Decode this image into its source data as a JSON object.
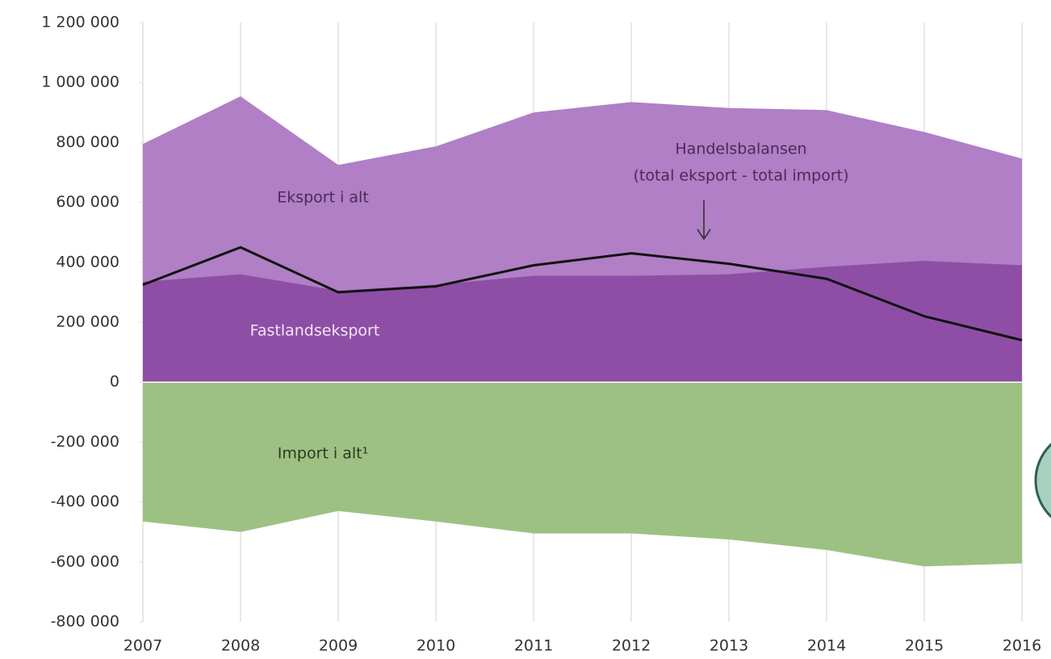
{
  "chart_data": {
    "type": "area",
    "x": [
      2007,
      2008,
      2009,
      2010,
      2011,
      2012,
      2013,
      2014,
      2015,
      2016
    ],
    "series": [
      {
        "name": "Eksport i alt",
        "color": "#b07fc5",
        "values": [
          795000,
          954000,
          725000,
          787000,
          900000,
          935000,
          915000,
          908000,
          835000,
          746000
        ]
      },
      {
        "name": "Fastlandseksport",
        "color": "#8e4ea6",
        "values": [
          335000,
          360000,
          305000,
          325000,
          355000,
          355000,
          360000,
          385000,
          405000,
          390000
        ]
      },
      {
        "name": "Import i alt¹",
        "color": "#9dc183",
        "values": [
          -465000,
          -500000,
          -430000,
          -465000,
          -505000,
          -505000,
          -525000,
          -560000,
          -615000,
          -605000
        ]
      },
      {
        "name": "Handelsbalansen",
        "color": "#111111",
        "type": "line",
        "values": [
          325000,
          450000,
          300000,
          320000,
          390000,
          430000,
          395000,
          345000,
          220000,
          140000
        ]
      }
    ],
    "annotations": [
      "(total eksport - total import)"
    ],
    "xlim": [
      2007,
      2016
    ],
    "xticks": [
      2007,
      2008,
      2009,
      2010,
      2011,
      2012,
      2013,
      2014,
      2015,
      2016
    ],
    "ylim": [
      -800000,
      1200000
    ],
    "yticks": [
      {
        "value": -800000,
        "label": "-800 000"
      },
      {
        "value": -600000,
        "label": "-600 000"
      },
      {
        "value": -400000,
        "label": "-400 000"
      },
      {
        "value": -200000,
        "label": "-200 000"
      },
      0,
      {
        "value": 200000,
        "label": "200 000"
      },
      {
        "value": 400000,
        "label": "400 000"
      },
      {
        "value": 600000,
        "label": "600 000"
      },
      {
        "value": 800000,
        "label": "800 000"
      },
      {
        "value": 1000000,
        "label": "1 000 000"
      },
      {
        "value": 1200000,
        "label": "1 200 000"
      }
    ],
    "grid": "x"
  }
}
